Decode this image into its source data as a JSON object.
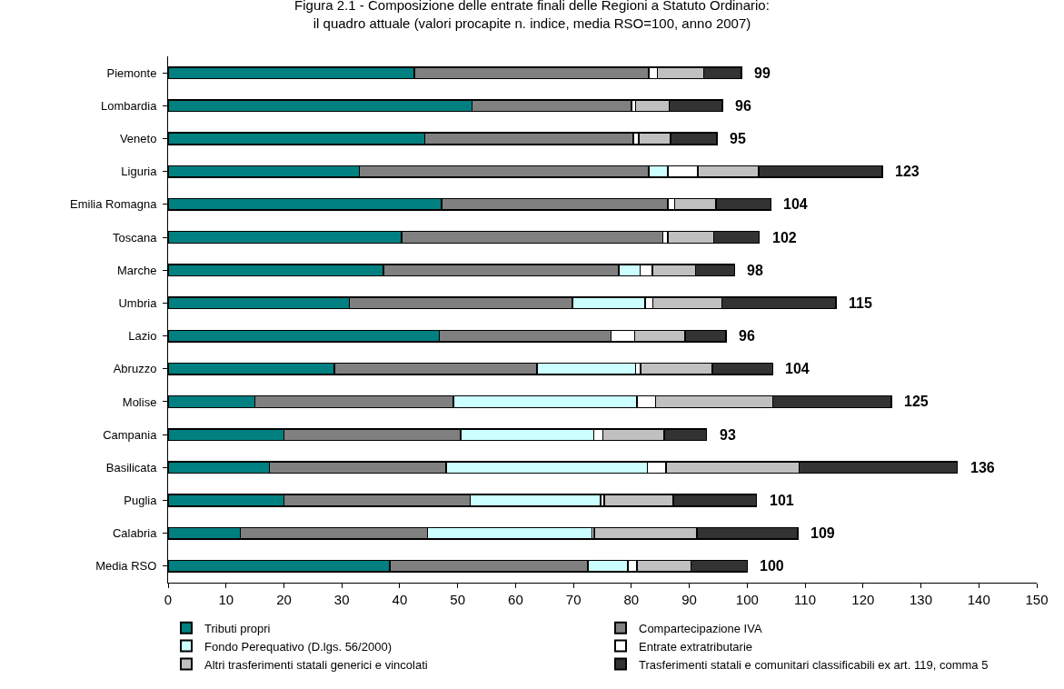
{
  "chart_data": {
    "type": "bar",
    "orientation": "horizontal",
    "stacked": true,
    "title": "Figura 2.1 - Composizione delle entrate finali delle Regioni a Statuto Ordinario:\nil quadro attuale (valori procapite n. indice, media RSO=100, anno 2007)",
    "categories": [
      "Piemonte",
      "Lombardia",
      "Veneto",
      "Liguria",
      "Emilia Romagna",
      "Toscana",
      "Marche",
      "Umbria",
      "Lazio",
      "Abruzzo",
      "Molise",
      "Campania",
      "Basilicata",
      "Puglia",
      "Calabria",
      "Media RSO"
    ],
    "series": [
      {
        "name": "Tributi propri",
        "color": "#008080",
        "values": [
          42.5,
          52.5,
          44.3,
          33,
          47.2,
          40.3,
          37.2,
          31.3,
          46.8,
          28.7,
          15,
          20,
          17.5,
          20,
          12.5,
          38.3
        ]
      },
      {
        "name": "Compartecipazione IVA",
        "color": "#808080",
        "values": [
          40.5,
          27.5,
          36,
          50,
          39.1,
          45.1,
          40.6,
          38.5,
          29.7,
          35,
          34.3,
          30.5,
          30.5,
          32.2,
          32.3,
          34.2
        ]
      },
      {
        "name": "Fondo Perequativo (D.lgs. 56/2000)",
        "color": "#ccffff",
        "values": [
          0,
          0,
          0,
          3.3,
          0,
          0,
          3.7,
          12.6,
          0,
          17,
          31.7,
          23,
          34.8,
          22.5,
          28.4,
          6.9
        ]
      },
      {
        "name": "Entrate extratributarie",
        "color": "#ffffff",
        "values": [
          1.5,
          0.7,
          1,
          5.2,
          1.2,
          0.9,
          2.1,
          1.3,
          4.1,
          0.9,
          3.2,
          1.6,
          3.2,
          0.6,
          0.4,
          1.6
        ]
      },
      {
        "name": "Altri trasferimenti statali generici e vincolati",
        "color": "#c0c0c0",
        "values": [
          8,
          5.8,
          5.5,
          10.5,
          7.1,
          7.9,
          7.5,
          11.9,
          8.7,
          12.4,
          20.2,
          10.6,
          23,
          11.9,
          17.7,
          9.3
        ]
      },
      {
        "name": "Trasferimenti statali e comunitari classificabili ex art. 119, comma 5",
        "color": "#333333",
        "values": [
          6.5,
          9.2,
          8,
          21.3,
          9.5,
          7.9,
          6.7,
          19.7,
          7,
          10.4,
          20.5,
          7.3,
          27.3,
          14.4,
          17.4,
          9.7
        ]
      }
    ],
    "totals": [
      "99",
      "96",
      "95",
      "123",
      "104",
      "102",
      "98",
      "115",
      "96",
      "104",
      "125",
      "93",
      "136",
      "101",
      "109",
      "100"
    ],
    "xlim": [
      0,
      150
    ],
    "xticks": [
      0,
      10,
      20,
      30,
      40,
      50,
      60,
      70,
      80,
      90,
      100,
      110,
      120,
      130,
      140,
      150
    ],
    "grid": false,
    "legend": "bottom"
  }
}
